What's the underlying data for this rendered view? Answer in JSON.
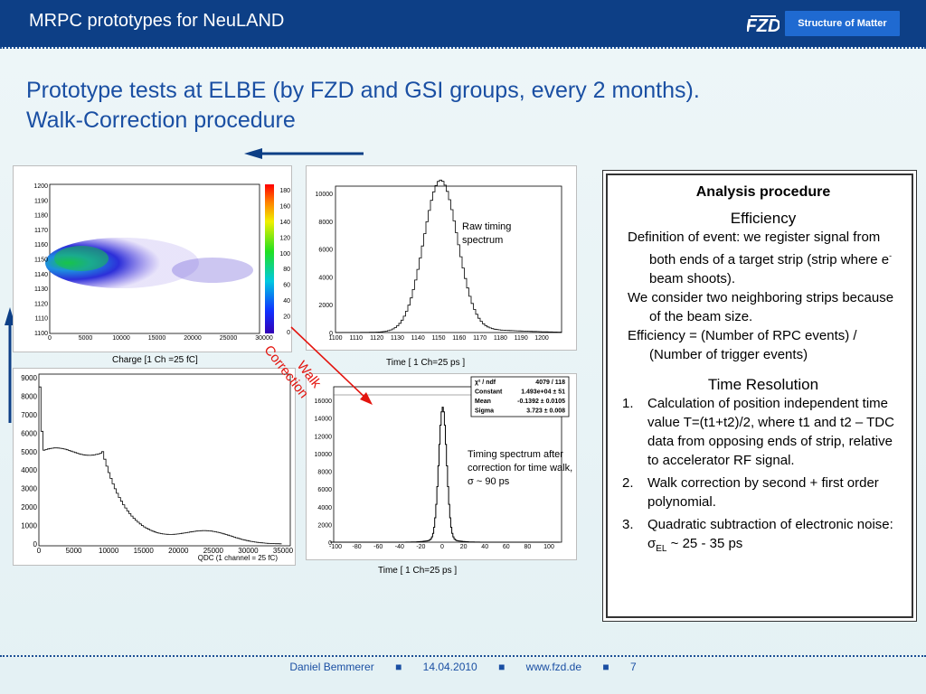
{
  "header": {
    "title": "MRPC prototypes for NeuLAND",
    "badge": "Structure of Matter"
  },
  "slide": {
    "title_line1": "Prototype tests at ELBE (by FZD and GSI groups, every 2 months).",
    "title_line2": "Walk-Correction procedure"
  },
  "plots": {
    "scatter": {
      "caption": "Charge [1 Ch =25 fC]",
      "y_ticks": [
        "1200",
        "1190",
        "1180",
        "1170",
        "1160",
        "1150",
        "1140",
        "1130",
        "1120",
        "1110",
        "1100"
      ],
      "x_ticks": [
        "0",
        "5000",
        "10000",
        "15000",
        "20000",
        "25000",
        "30000"
      ],
      "z_ticks": [
        "180",
        "160",
        "140",
        "120",
        "100",
        "80",
        "60",
        "40",
        "20",
        "0"
      ]
    },
    "raw": {
      "caption": "Time [ 1 Ch=25 ps ]",
      "note_line1": "Raw timing",
      "note_line2": "spectrum",
      "y_ticks": [
        "10000",
        "8000",
        "6000",
        "4000",
        "2000",
        "0"
      ],
      "x_ticks": [
        "1100",
        "1110",
        "1120",
        "1130",
        "1140",
        "1150",
        "1160",
        "1170",
        "1180",
        "1190",
        "1200"
      ]
    },
    "qdc": {
      "xlabel": "QDC (1 channel = 25 fC)",
      "y_ticks": [
        "9000",
        "8000",
        "7000",
        "6000",
        "5000",
        "4000",
        "3000",
        "2000",
        "1000",
        "0"
      ],
      "x_ticks": [
        "0",
        "5000",
        "10000",
        "15000",
        "20000",
        "25000",
        "30000",
        "35000"
      ]
    },
    "corrected": {
      "caption": "Time [ 1 Ch=25 ps ]",
      "note_line1": "Timing spectrum after",
      "note_line2": "correction for time walk,",
      "note_line3": "σ ~ 90 ps",
      "y_ticks": [
        "16000",
        "14000",
        "12000",
        "10000",
        "8000",
        "6000",
        "4000",
        "2000",
        "0"
      ],
      "x_ticks": [
        "-100",
        "-80",
        "-60",
        "-40",
        "-20",
        "0",
        "20",
        "40",
        "60",
        "80",
        "100"
      ],
      "stats": [
        [
          "χ² / ndf",
          "4079 / 118"
        ],
        [
          "Constant",
          "1.493e+04 ± 51"
        ],
        [
          "Mean",
          "-0.1392 ± 0.0105"
        ],
        [
          "Sigma",
          "3.723 ± 0.008"
        ]
      ]
    }
  },
  "walk_label_1": "Walk",
  "walk_label_2": "Correction",
  "panel": {
    "heading": "Analysis procedure",
    "efficiency_title": "Efficiency",
    "eff_1a": "Definition of event: we register signal from both ends of a target strip (strip where e",
    "eff_1b": "-",
    "eff_1c": " beam shoots).",
    "eff_2": "We consider two neighboring strips because of the beam size.",
    "eff_3": "Efficiency = (Number of RPC events) / (Number of trigger events)",
    "time_title": "Time Resolution",
    "items": [
      {
        "n": "1.",
        "text": "Calculation of position independent time value T=(t1+t2)/2, where t1 and t2 – TDC data from opposing ends of strip, relative to accelerator RF signal."
      },
      {
        "n": "2.",
        "text": "Walk correction by second + first order polynomial."
      },
      {
        "n": "3.",
        "text_a": "Quadratic subtraction of electronic noise: σ",
        "text_sub": "EL",
        "text_b": " ~ 25 - 35 ps"
      }
    ]
  },
  "footer": {
    "author": "Daniel Bemmerer",
    "sep": "■",
    "date": "14.04.2010",
    "url": "www.fzd.de",
    "page": "7"
  },
  "colors": {
    "header_bg": "#0d3f86",
    "title": "#1a4fa3",
    "arrow": "#0d3f86",
    "red": "#e3140e"
  }
}
